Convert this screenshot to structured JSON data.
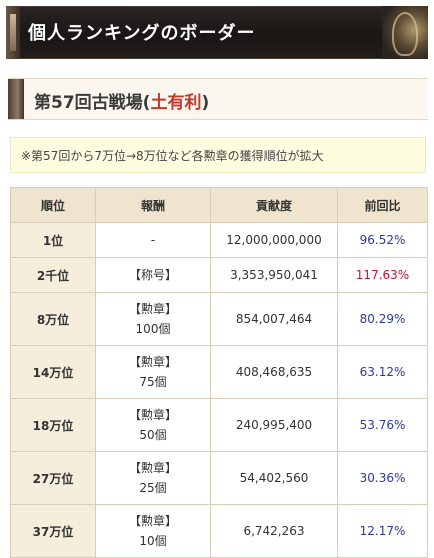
{
  "banner": {
    "title": "個人ランキングのボーダー"
  },
  "section": {
    "prefix": "第57回古戦場",
    "paren_open": "(",
    "attribute": "土有利",
    "paren_close": ")"
  },
  "notice": "※第57回から7万位→8万位など各勲章の獲得順位が拡大",
  "table": {
    "headers": [
      "順位",
      "報酬",
      "貢献度",
      "前回比"
    ],
    "rows": [
      {
        "rank": "1位",
        "reward_line1": "-",
        "reward_line2": "",
        "points": "12,000,000,000",
        "ratio": "96.52%"
      },
      {
        "rank": "2千位",
        "reward_line1": "【称号】",
        "reward_line2": "",
        "points": "3,353,950,041",
        "ratio": "117.63%"
      },
      {
        "rank": "8万位",
        "reward_line1": "【勲章】",
        "reward_line2": "100個",
        "points": "854,007,464",
        "ratio": "80.29%"
      },
      {
        "rank": "14万位",
        "reward_line1": "【勲章】",
        "reward_line2": "75個",
        "points": "408,468,635",
        "ratio": "63.12%"
      },
      {
        "rank": "18万位",
        "reward_line1": "【勲章】",
        "reward_line2": "50個",
        "points": "240,995,400",
        "ratio": "53.76%"
      },
      {
        "rank": "27万位",
        "reward_line1": "【勲章】",
        "reward_line2": "25個",
        "points": "54,402,560",
        "ratio": "30.36%"
      },
      {
        "rank": "37万位",
        "reward_line1": "【勲章】",
        "reward_line2": "10個",
        "points": "6,742,263",
        "ratio": "12.17%"
      }
    ]
  },
  "colors": {
    "ratio_down": "#2a3a9c",
    "ratio_up": "#c8102e",
    "attribute_highlight": "#c0392b"
  }
}
